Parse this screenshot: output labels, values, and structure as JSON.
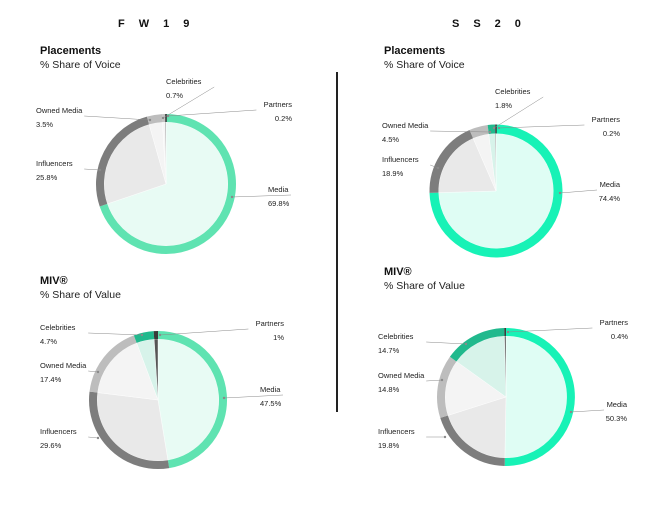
{
  "header": {
    "left_season": "FW19",
    "right_season": "SS20"
  },
  "colors": {
    "fw19_media": "#5fe3b1",
    "ss20_media": "#17f2b6",
    "fw19_fill": "#e8fbf4",
    "ss20_fill": "#dffdf4"
  },
  "chart_data": [
    {
      "type": "pie",
      "id": "fw19-placements",
      "title": "Placements",
      "subtitle": "% Share of Voice",
      "slices": [
        {
          "label": "Media",
          "value": 69.8,
          "display": "69.8%",
          "ring": "#5fe3b1",
          "fill": "#e8fbf4"
        },
        {
          "label": "Influencers",
          "value": 25.8,
          "display": "25.8%",
          "ring": "#7d7d7d",
          "fill": "#e9e9e9"
        },
        {
          "label": "Owned Media",
          "value": 3.5,
          "display": "3.5%",
          "ring": "#bdbdbd",
          "fill": "#f4f4f4"
        },
        {
          "label": "Celebrities",
          "value": 0.7,
          "display": "0.7%",
          "ring": "#c3c3c3",
          "fill": "#f6f6f6"
        },
        {
          "label": "Partners",
          "value": 0.2,
          "display": "0.2%",
          "ring": "#3a3a3a",
          "fill": "#555555"
        }
      ]
    },
    {
      "type": "pie",
      "id": "ss20-placements",
      "title": "Placements",
      "subtitle": "% Share of Voice",
      "slices": [
        {
          "label": "Media",
          "value": 74.4,
          "display": "74.4%",
          "ring": "#17f2b6",
          "fill": "#dffdf4"
        },
        {
          "label": "Influencers",
          "value": 18.9,
          "display": "18.9%",
          "ring": "#7d7d7d",
          "fill": "#e9e9e9"
        },
        {
          "label": "Owned Media",
          "value": 4.5,
          "display": "4.5%",
          "ring": "#bdbdbd",
          "fill": "#f4f4f4"
        },
        {
          "label": "Celebrities",
          "value": 1.8,
          "display": "1.8%",
          "ring": "#21b98d",
          "fill": "#d7f3ea"
        },
        {
          "label": "Partners",
          "value": 0.2,
          "display": "0.2%",
          "ring": "#3a3a3a",
          "fill": "#555555"
        }
      ]
    },
    {
      "type": "pie",
      "id": "fw19-miv",
      "title": "MIV®",
      "subtitle": "% Share of Value",
      "slices": [
        {
          "label": "Media",
          "value": 47.5,
          "display": "47.5%",
          "ring": "#5fe3b1",
          "fill": "#e8fbf4"
        },
        {
          "label": "Influencers",
          "value": 29.6,
          "display": "29.6%",
          "ring": "#7d7d7d",
          "fill": "#e9e9e9"
        },
        {
          "label": "Owned Media",
          "value": 17.4,
          "display": "17.4%",
          "ring": "#bdbdbd",
          "fill": "#f4f4f4"
        },
        {
          "label": "Celebrities",
          "value": 4.7,
          "display": "4.7%",
          "ring": "#21b98d",
          "fill": "#d7f3ea"
        },
        {
          "label": "Partners",
          "value": 1,
          "display": "1%",
          "ring": "#3a3a3a",
          "fill": "#555555"
        }
      ]
    },
    {
      "type": "pie",
      "id": "ss20-miv",
      "title": "MIV®",
      "subtitle": "% Share of Value",
      "slices": [
        {
          "label": "Media",
          "value": 50.3,
          "display": "50.3%",
          "ring": "#17f2b6",
          "fill": "#dffdf4"
        },
        {
          "label": "Influencers",
          "value": 19.8,
          "display": "19.8%",
          "ring": "#7d7d7d",
          "fill": "#e9e9e9"
        },
        {
          "label": "Owned Media",
          "value": 14.8,
          "display": "14.8%",
          "ring": "#bdbdbd",
          "fill": "#f4f4f4"
        },
        {
          "label": "Celebrities",
          "value": 14.7,
          "display": "14.7%",
          "ring": "#21b98d",
          "fill": "#d7f3ea"
        },
        {
          "label": "Partners",
          "value": 0.4,
          "display": "0.4%",
          "ring": "#3a3a3a",
          "fill": "#555555"
        }
      ]
    }
  ]
}
